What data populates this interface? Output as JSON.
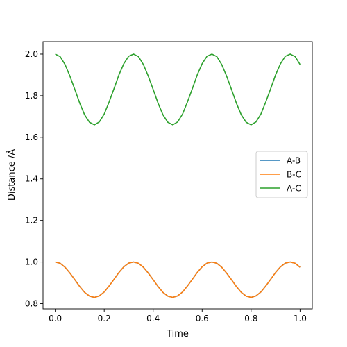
{
  "chart_data": {
    "type": "line",
    "title": "",
    "xlabel": "Time",
    "ylabel": "Distance /Å",
    "xlim": [
      -0.05,
      1.05
    ],
    "ylim": [
      0.775,
      2.06
    ],
    "xticks": [
      0.0,
      0.2,
      0.4,
      0.6,
      0.8,
      1.0
    ],
    "xtick_labels": [
      "0.0",
      "0.2",
      "0.4",
      "0.6",
      "0.8",
      "1.0"
    ],
    "yticks": [
      0.8,
      1.0,
      1.2,
      1.4,
      1.6,
      1.8,
      2.0
    ],
    "ytick_labels": [
      "0.8",
      "1.0",
      "1.2",
      "1.4",
      "1.6",
      "1.8",
      "2.0"
    ],
    "grid": false,
    "legend_position": "center-right",
    "x": [
      0.0,
      0.02,
      0.04,
      0.06,
      0.08,
      0.1,
      0.12,
      0.14,
      0.16,
      0.18,
      0.2,
      0.22,
      0.24,
      0.26,
      0.28,
      0.3,
      0.32,
      0.34,
      0.36,
      0.38,
      0.4,
      0.42,
      0.44,
      0.46,
      0.48,
      0.5,
      0.52,
      0.54,
      0.56,
      0.58,
      0.6,
      0.62,
      0.64,
      0.66,
      0.68,
      0.7,
      0.72,
      0.74,
      0.76,
      0.78,
      0.8,
      0.82,
      0.84,
      0.86,
      0.88,
      0.9,
      0.92,
      0.94,
      0.96,
      0.98,
      1.0
    ],
    "series": [
      {
        "name": "A-B",
        "color": "#1f77b4",
        "values": [
          1.0,
          0.994,
          0.975,
          0.947,
          0.915,
          0.882,
          0.854,
          0.836,
          0.83,
          0.837,
          0.856,
          0.885,
          0.917,
          0.95,
          0.977,
          0.995,
          1.0,
          0.994,
          0.975,
          0.947,
          0.915,
          0.882,
          0.854,
          0.836,
          0.83,
          0.837,
          0.856,
          0.885,
          0.917,
          0.95,
          0.977,
          0.995,
          1.0,
          0.994,
          0.975,
          0.947,
          0.915,
          0.882,
          0.854,
          0.836,
          0.83,
          0.837,
          0.856,
          0.885,
          0.917,
          0.95,
          0.977,
          0.995,
          1.0,
          0.994,
          0.975
        ]
      },
      {
        "name": "B-C",
        "color": "#ff7f0e",
        "values": [
          1.0,
          0.994,
          0.975,
          0.947,
          0.915,
          0.882,
          0.854,
          0.836,
          0.83,
          0.837,
          0.856,
          0.885,
          0.917,
          0.95,
          0.977,
          0.995,
          1.0,
          0.994,
          0.975,
          0.947,
          0.915,
          0.882,
          0.854,
          0.836,
          0.83,
          0.837,
          0.856,
          0.885,
          0.917,
          0.95,
          0.977,
          0.995,
          1.0,
          0.994,
          0.975,
          0.947,
          0.915,
          0.882,
          0.854,
          0.836,
          0.83,
          0.837,
          0.856,
          0.885,
          0.917,
          0.95,
          0.977,
          0.995,
          1.0,
          0.994,
          0.975
        ]
      },
      {
        "name": "A-C",
        "color": "#2ca02c",
        "values": [
          2.0,
          1.988,
          1.95,
          1.894,
          1.83,
          1.764,
          1.708,
          1.672,
          1.66,
          1.674,
          1.712,
          1.77,
          1.834,
          1.9,
          1.954,
          1.99,
          2.0,
          1.988,
          1.95,
          1.894,
          1.83,
          1.764,
          1.708,
          1.672,
          1.66,
          1.674,
          1.712,
          1.77,
          1.834,
          1.9,
          1.954,
          1.99,
          2.0,
          1.988,
          1.95,
          1.894,
          1.83,
          1.764,
          1.708,
          1.672,
          1.66,
          1.674,
          1.712,
          1.77,
          1.834,
          1.9,
          1.954,
          1.99,
          2.0,
          1.988,
          1.95
        ]
      }
    ]
  }
}
